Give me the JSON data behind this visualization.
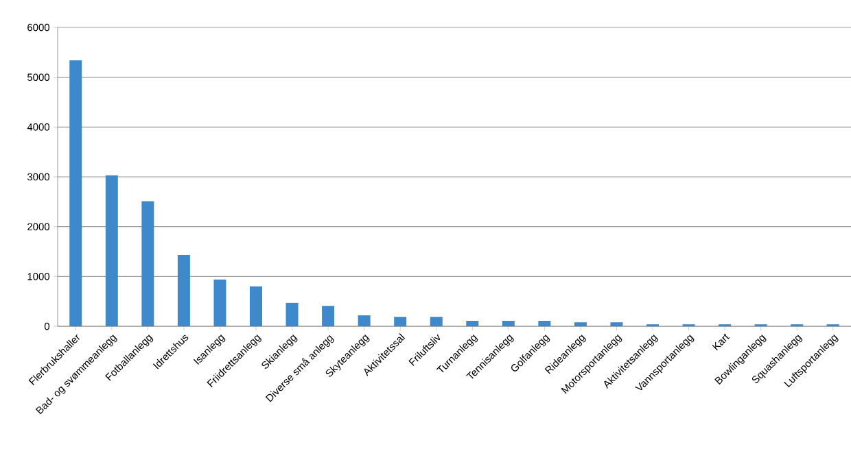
{
  "chart_data": {
    "type": "bar",
    "categories": [
      "Flerbrukshaller",
      "Bad- og svømmeanlegg",
      "Fotballanlegg",
      "Idrettshus",
      "Isanlegg",
      "Friidrettsanlegg",
      "Skianlegg",
      "Diverse små anlegg",
      "Skyteanlegg",
      "Aktivitetssal",
      "Friluftsliv",
      "Turnanlegg",
      "Tennisanlegg",
      "Golfanlegg",
      "Rideanlegg",
      "Motorsportanlegg",
      "Aktivitetsanlegg",
      "Vannsportanlegg",
      "Kart",
      "Bowlinganlegg",
      "Squashanlegg",
      "Luftsportanlegg"
    ],
    "values": [
      5340,
      3030,
      2510,
      1430,
      940,
      800,
      470,
      410,
      220,
      190,
      190,
      110,
      110,
      110,
      80,
      80,
      40,
      40,
      40,
      40,
      40,
      40
    ],
    "color": "#3d89cc",
    "ylim": [
      0,
      6000
    ],
    "yticks": [
      0,
      1000,
      2000,
      3000,
      4000,
      5000,
      6000
    ],
    "grid": "y"
  }
}
